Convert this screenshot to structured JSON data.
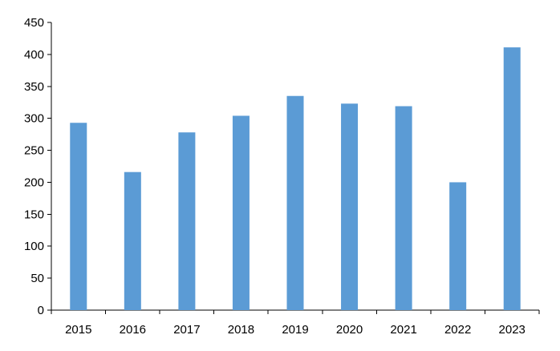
{
  "chart_data": {
    "type": "bar",
    "categories": [
      "2015",
      "2016",
      "2017",
      "2018",
      "2019",
      "2020",
      "2021",
      "2022",
      "2023"
    ],
    "values": [
      293,
      216,
      278,
      304,
      335,
      323,
      319,
      200,
      411
    ],
    "title": "",
    "xlabel": "",
    "ylabel": "",
    "ylim": [
      0,
      450
    ],
    "yticks": [
      0,
      50,
      100,
      150,
      200,
      250,
      300,
      350,
      400,
      450
    ],
    "grid": false,
    "legend": "none",
    "bar_color": "#5b9bd5"
  }
}
